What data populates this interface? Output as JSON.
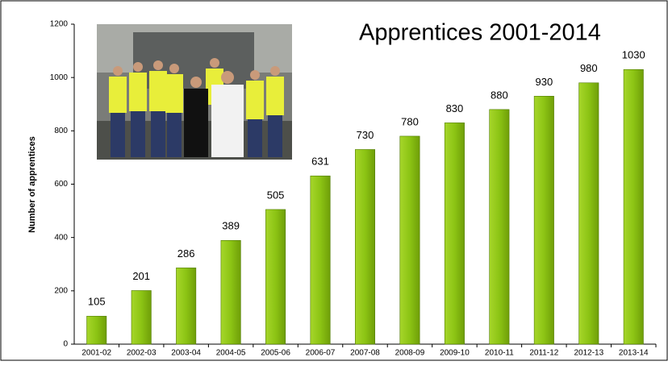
{
  "chart_data": {
    "type": "bar",
    "title": "Apprentices 2001-2014",
    "y_label": "Number of apprentices",
    "categories": [
      "2001-02",
      "2002-03",
      "2003-04",
      "2004-05",
      "2005-06",
      "2006-07",
      "2007-08",
      "2008-09",
      "2009-10",
      "2010-11",
      "2011-12",
      "2012-13",
      "2013-14"
    ],
    "values": [
      105,
      201,
      286,
      389,
      505,
      631,
      730,
      780,
      830,
      880,
      930,
      980,
      1030
    ],
    "color": "#8cc414",
    "ylim": [
      0,
      1200
    ],
    "yticks": [
      0,
      200,
      400,
      600,
      800,
      1000,
      1200
    ],
    "grid": false
  }
}
